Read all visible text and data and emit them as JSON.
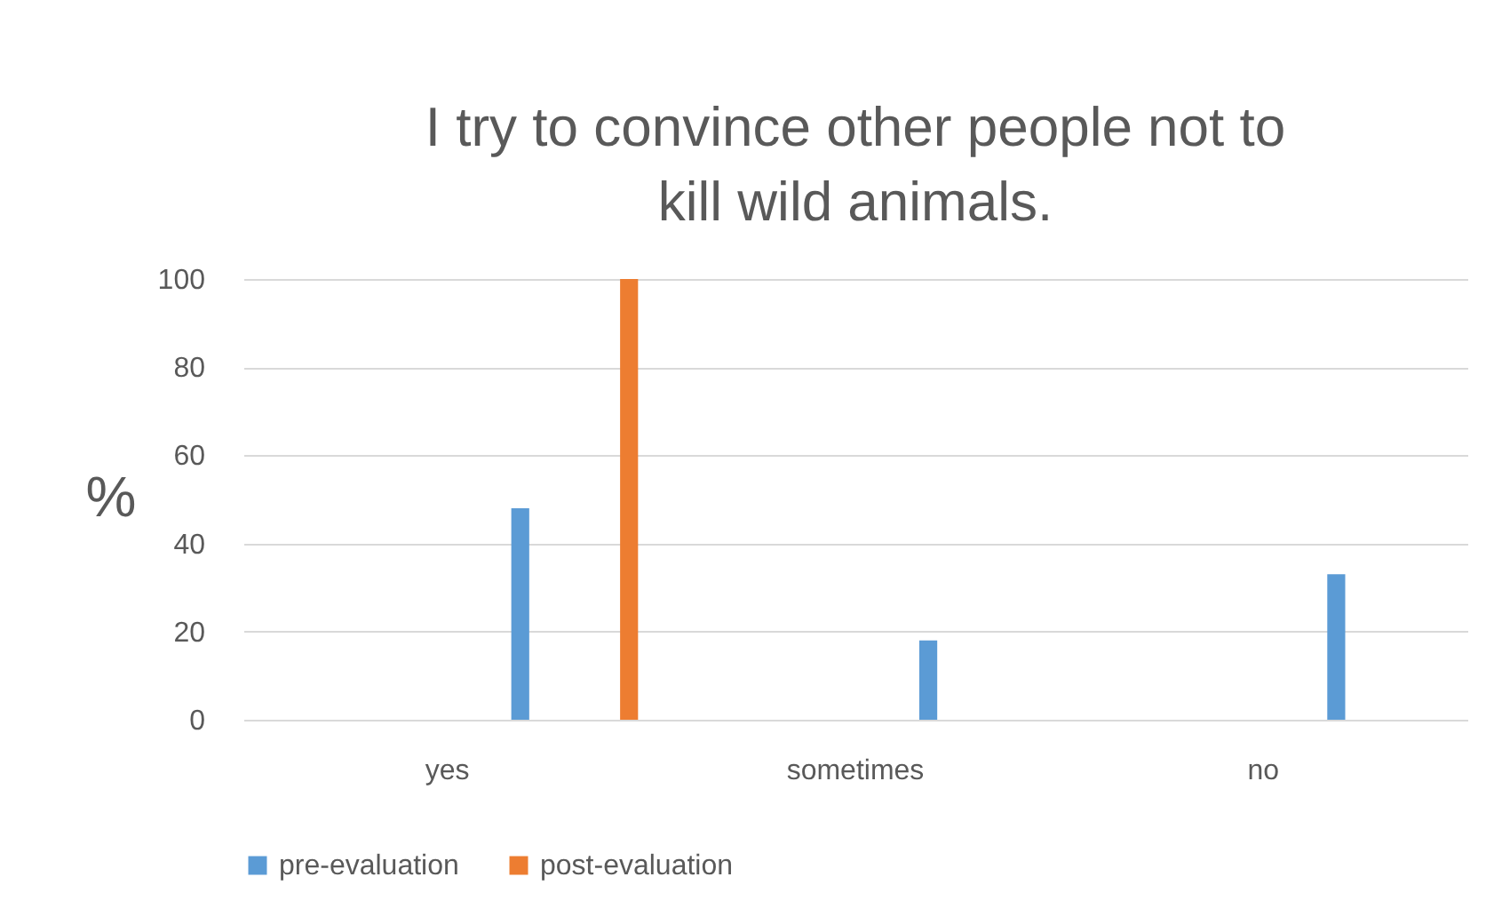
{
  "chart_data": {
    "type": "bar",
    "title": "I try to convince other people not to kill wild animals.",
    "ylabel": "%",
    "categories": [
      "yes",
      "sometimes",
      "no"
    ],
    "series": [
      {
        "name": "pre-evaluation",
        "color": "#5b9bd5",
        "values": [
          48,
          18,
          33
        ]
      },
      {
        "name": "post-evaluation",
        "color": "#ed7d31",
        "values": [
          100,
          0,
          0
        ]
      }
    ],
    "ylim": [
      0,
      100
    ],
    "yticks": [
      0,
      20,
      40,
      60,
      80,
      100
    ],
    "grid": "y",
    "legend": "bottom"
  }
}
